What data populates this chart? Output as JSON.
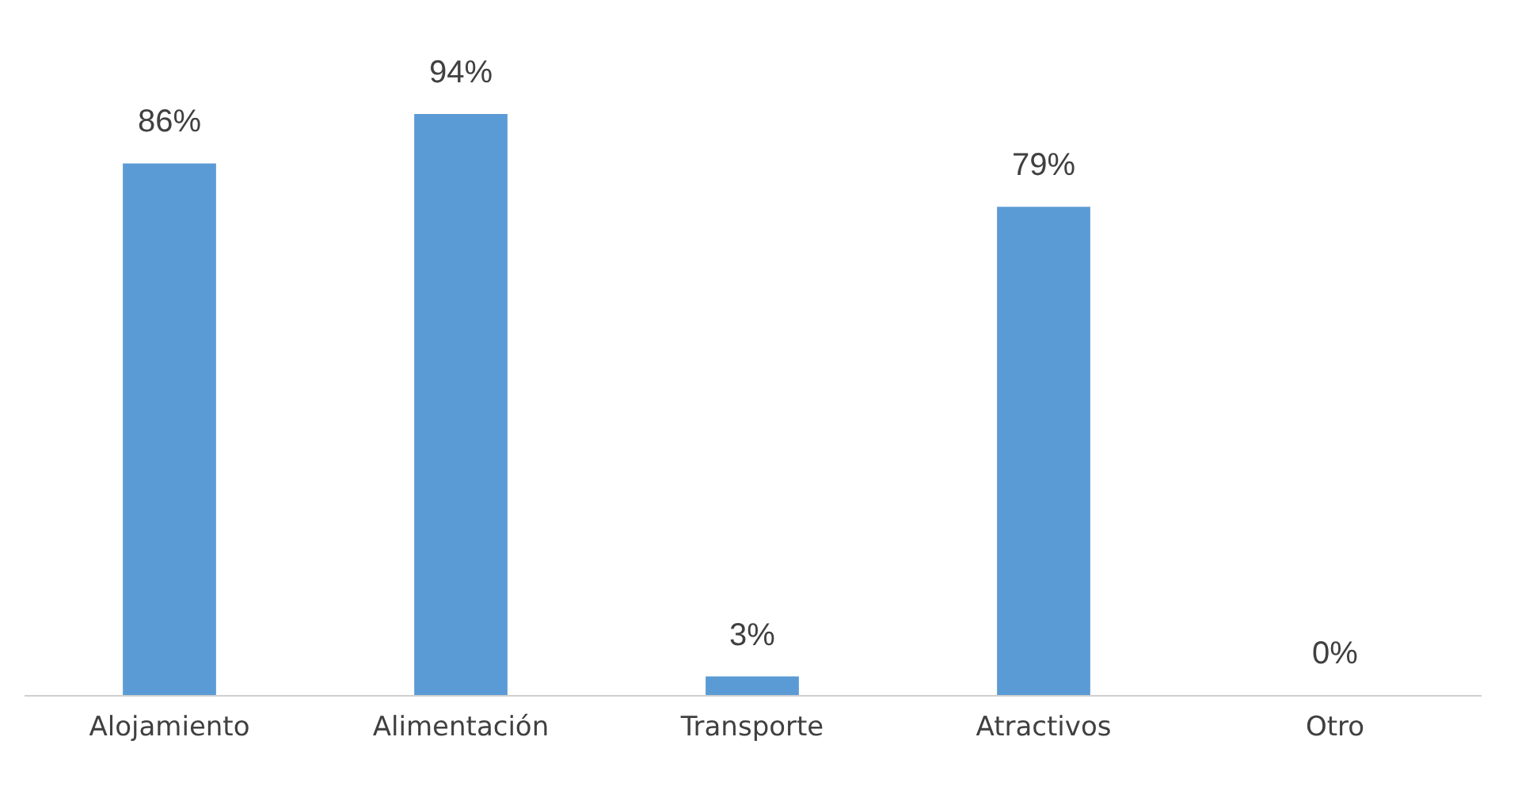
{
  "chart_data": {
    "type": "bar",
    "categories": [
      "Alojamiento",
      "Alimentación",
      "Transporte",
      "Atractivos",
      "Otro"
    ],
    "values": [
      86,
      94,
      3,
      79,
      0
    ],
    "color": "#5b9bd5",
    "value_labels": [
      "86%",
      "94%",
      "3%",
      "79%",
      "0%"
    ]
  }
}
